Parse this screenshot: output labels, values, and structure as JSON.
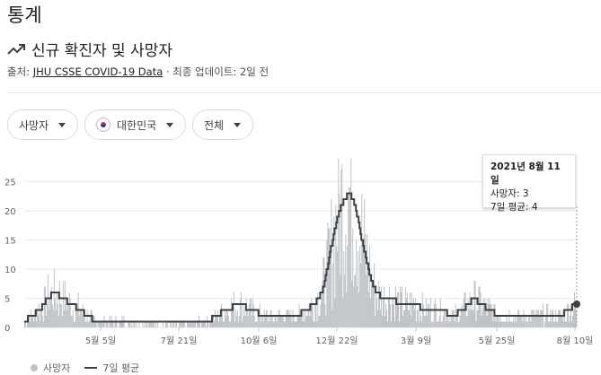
{
  "page": {
    "title": "통계"
  },
  "header": {
    "subtitle": "신규 확진자 및 사망자",
    "source_label": "출처:",
    "source_link": "JHU CSSE COVID-19 Data",
    "updated": "· 최종 업데이트: 2일 전"
  },
  "filters": {
    "metric": "사망자",
    "country": "대한민국",
    "range": "전체"
  },
  "tooltip": {
    "date": "2021년 8월 11일",
    "deaths": "사망자: 3",
    "avg": "7일 평균: 4"
  },
  "legend": {
    "deaths": "사망자",
    "avg": "7일 평균"
  },
  "colors": {
    "bars": "#bdc1c6",
    "avg_line": "#3c4043",
    "text": "#202124"
  },
  "chart_data": {
    "type": "bar",
    "ylim": [
      0,
      30
    ],
    "yticks": [
      0,
      5,
      10,
      15,
      20,
      25
    ],
    "xticks": [
      "5월 5일",
      "7월 21일",
      "10월 6일",
      "12월 22일",
      "3월 9일",
      "5월 25일",
      "8월 10일"
    ],
    "series": [
      {
        "name": "사망자",
        "type": "bar"
      },
      {
        "name": "7일 평균",
        "type": "line"
      }
    ],
    "avg_keypoints": [
      [
        0,
        1
      ],
      [
        8,
        2
      ],
      [
        18,
        3
      ],
      [
        26,
        5
      ],
      [
        34,
        6
      ],
      [
        42,
        5
      ],
      [
        52,
        4
      ],
      [
        62,
        3
      ],
      [
        70,
        2
      ],
      [
        80,
        1
      ],
      [
        100,
        1
      ],
      [
        115,
        1
      ],
      [
        125,
        0.7
      ],
      [
        145,
        0.7
      ],
      [
        160,
        0.5
      ],
      [
        180,
        0.5
      ],
      [
        195,
        1
      ],
      [
        210,
        1.5
      ],
      [
        225,
        3
      ],
      [
        240,
        4
      ],
      [
        255,
        3
      ],
      [
        268,
        2
      ],
      [
        290,
        2
      ],
      [
        305,
        2
      ],
      [
        315,
        3
      ],
      [
        325,
        4
      ],
      [
        333,
        6
      ],
      [
        340,
        11
      ],
      [
        346,
        16
      ],
      [
        352,
        20
      ],
      [
        358,
        22
      ],
      [
        364,
        23
      ],
      [
        370,
        21
      ],
      [
        376,
        16
      ],
      [
        382,
        12
      ],
      [
        388,
        8
      ],
      [
        394,
        6
      ],
      [
        400,
        5
      ],
      [
        410,
        5
      ],
      [
        420,
        4
      ],
      [
        435,
        4
      ],
      [
        450,
        3
      ],
      [
        465,
        3
      ],
      [
        480,
        2
      ],
      [
        490,
        3
      ],
      [
        497,
        4
      ],
      [
        503,
        5
      ],
      [
        510,
        4
      ],
      [
        520,
        3
      ],
      [
        530,
        2
      ],
      [
        545,
        2
      ],
      [
        560,
        2
      ],
      [
        575,
        2
      ],
      [
        588,
        2
      ],
      [
        600,
        2
      ],
      [
        608,
        3
      ],
      [
        617,
        4
      ]
    ],
    "bars_seed": 7,
    "n_bars": 618,
    "last_value": 3,
    "last_avg": 4
  }
}
